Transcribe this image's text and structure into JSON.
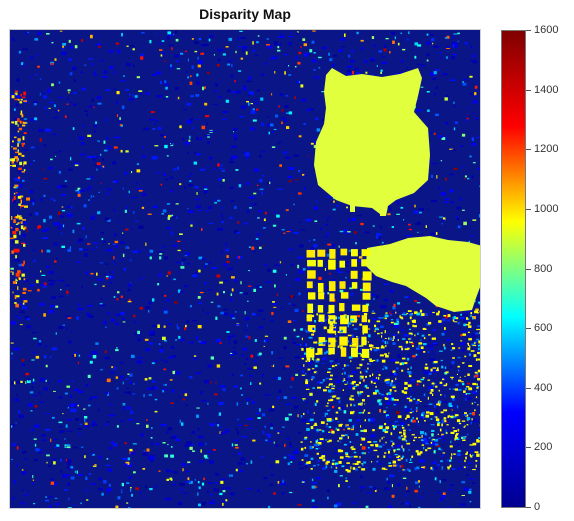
{
  "chart_data": {
    "type": "heatmap",
    "title": "Disparity Map",
    "xlabel": "",
    "ylabel": "",
    "colormap": "jet",
    "colorbar": {
      "range": [
        0,
        1600
      ],
      "ticks": [
        {
          "value": 1600,
          "label": "1600"
        },
        {
          "value": 1400,
          "label": "1400"
        },
        {
          "value": 1200,
          "label": "1200"
        },
        {
          "value": 1000,
          "label": "1000"
        },
        {
          "value": 800,
          "label": "800"
        },
        {
          "value": 600,
          "label": "600"
        },
        {
          "value": 400,
          "label": "400"
        },
        {
          "value": 200,
          "label": "200"
        },
        {
          "value": 0,
          "label": "0"
        }
      ]
    },
    "background_value": 80,
    "dominant_foreground_value": 1000,
    "grid": false,
    "axes_ticks": false
  },
  "colors": {
    "colormap_stops": [
      "#00008f",
      "#0000ff",
      "#00ffff",
      "#ffff00",
      "#ff0000",
      "#800000"
    ],
    "foreground_yellow": "#e1ff3c",
    "background_navy": "#0a1688"
  }
}
